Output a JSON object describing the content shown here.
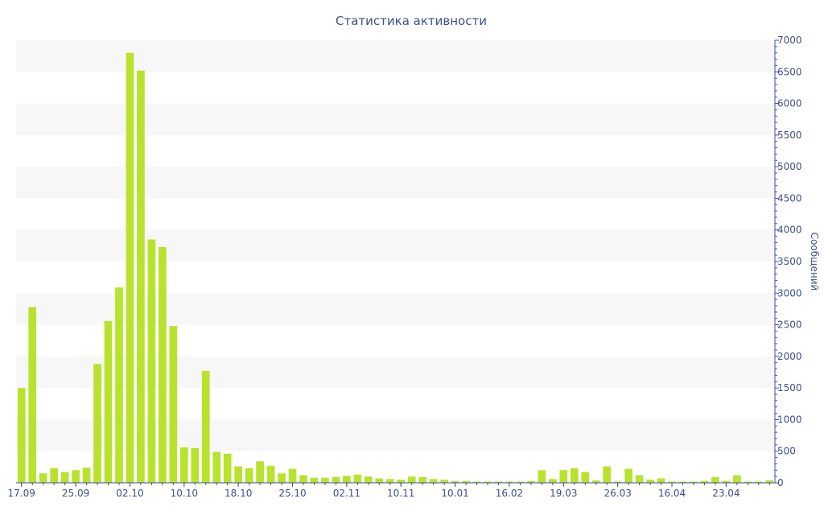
{
  "chart_data": {
    "type": "bar",
    "title": "Статистика активности",
    "ylabel": "Сообщений",
    "xlabel": "",
    "ylim": [
      0,
      7000
    ],
    "yticks": [
      0,
      500,
      1000,
      1500,
      2000,
      2500,
      3000,
      3500,
      4000,
      4500,
      5000,
      5500,
      6000,
      6500,
      7000
    ],
    "x_tick_labels": [
      {
        "index": 0,
        "label": "17.09"
      },
      {
        "index": 5,
        "label": "25.09"
      },
      {
        "index": 10,
        "label": "02.10"
      },
      {
        "index": 15,
        "label": "10.10"
      },
      {
        "index": 20,
        "label": "18.10"
      },
      {
        "index": 25,
        "label": "25.10"
      },
      {
        "index": 30,
        "label": "02.11"
      },
      {
        "index": 35,
        "label": "10.11"
      },
      {
        "index": 40,
        "label": "10.01"
      },
      {
        "index": 45,
        "label": "16.02"
      },
      {
        "index": 50,
        "label": "19.03"
      },
      {
        "index": 55,
        "label": "26.03"
      },
      {
        "index": 60,
        "label": "16.04"
      },
      {
        "index": 65,
        "label": "23.04"
      }
    ],
    "values": [
      1500,
      2780,
      150,
      230,
      170,
      200,
      240,
      1880,
      2560,
      3090,
      6800,
      6520,
      3850,
      3730,
      2480,
      560,
      550,
      1770,
      490,
      460,
      260,
      230,
      340,
      270,
      150,
      220,
      120,
      80,
      80,
      90,
      110,
      130,
      100,
      70,
      60,
      50,
      100,
      90,
      60,
      50,
      30,
      30,
      20,
      20,
      20,
      20,
      20,
      30,
      200,
      60,
      200,
      230,
      170,
      40,
      260,
      20,
      220,
      120,
      50,
      70,
      20,
      20,
      20,
      30,
      90,
      30,
      120,
      20,
      20,
      40
    ],
    "bar_color": "#b7e32e",
    "grid": true,
    "band_color": "#f7f7f7",
    "axis_color": "#3e4f8e",
    "legend": "none"
  }
}
